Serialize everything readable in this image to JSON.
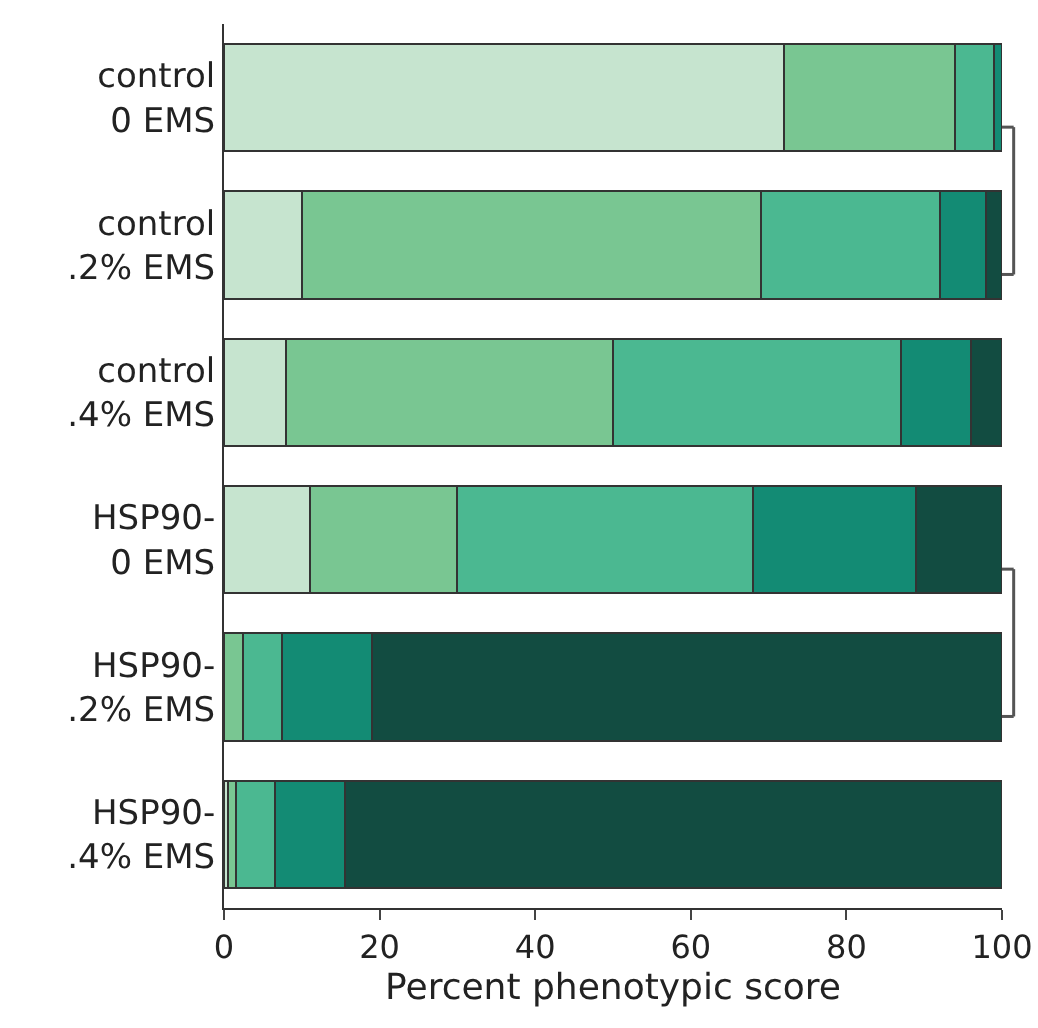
{
  "chart_data": {
    "type": "bar",
    "orientation": "horizontal",
    "stacked": true,
    "categories": [
      "control\n0 EMS",
      "control\n.2% EMS",
      "control\n.4% EMS",
      "HSP90-\n0 EMS",
      "HSP90-\n.2% EMS",
      "HSP90-\n.4% EMS"
    ],
    "series": [
      {
        "color": "#c6e4cf",
        "values": [
          72,
          10,
          8,
          11,
          null,
          0.5
        ]
      },
      {
        "color": "#79c692",
        "values": [
          22,
          59,
          42,
          19,
          2.5,
          1
        ]
      },
      {
        "color": "#4bb891",
        "values": [
          5,
          23,
          37,
          38,
          5,
          5
        ]
      },
      {
        "color": "#138b74",
        "values": [
          1,
          6,
          9,
          21,
          11.5,
          9
        ]
      },
      {
        "color": "#124c41",
        "values": [
          null,
          2,
          4,
          11,
          81,
          84.5
        ]
      }
    ],
    "xlabel": "Percent phenotypic score",
    "xlim": [
      0,
      100
    ],
    "xticks": [
      0,
      20,
      40,
      60,
      80,
      100
    ],
    "grid": false
  }
}
